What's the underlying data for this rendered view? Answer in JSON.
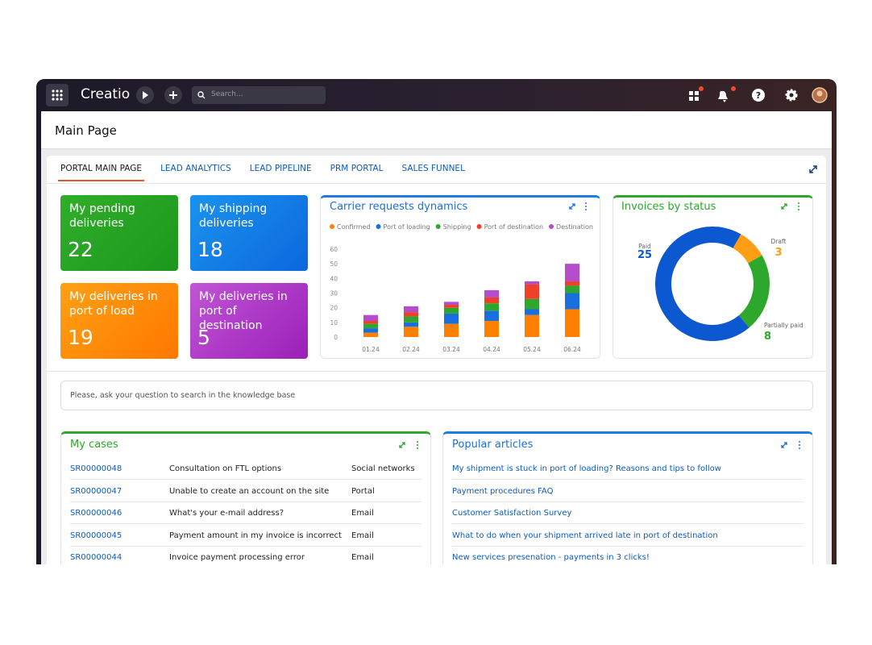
{
  "topbar": {
    "brand": "Creatio",
    "search_placeholder": "Search..."
  },
  "page": {
    "title": "Main Page"
  },
  "tabs": [
    "PORTAL MAIN PAGE",
    "LEAD ANALYTICS",
    "LEAD PIPELINE",
    "PRM PORTAL",
    "SALES FUNNEL"
  ],
  "tiles": [
    {
      "label": "My pending deliveries",
      "value": "22"
    },
    {
      "label": "My shipping deliveries",
      "value": "18"
    },
    {
      "label": "My deliveries in port of load",
      "value": "19"
    },
    {
      "label": "My deliveries in port of destination",
      "value": "5"
    }
  ],
  "knowledge_search": {
    "placeholder": "Please, ask your question to search in the knowledge base"
  },
  "cases": {
    "title": "My cases",
    "rows": [
      [
        "SR00000048",
        "Consultation on FTL options",
        "Social networks"
      ],
      [
        "SR00000047",
        "Unable to create an account on the site",
        "Portal"
      ],
      [
        "SR00000046",
        "What's your e-mail address?",
        "Email"
      ],
      [
        "SR00000045",
        "Payment amount in my invoice is incorrect",
        "Email"
      ],
      [
        "SR00000044",
        "Invoice payment processing error",
        "Email"
      ]
    ]
  },
  "articles": {
    "title": "Popular articles",
    "items": [
      "My shipment is stuck in port of loading? Reasons and tips to follow",
      "Payment procedures FAQ",
      "Customer Satisfaction Survey",
      "What to do when your shipment arrived late in port of destination",
      "New services presenation - payments in 3 clicks!"
    ]
  },
  "chart_data": [
    {
      "type": "bar",
      "stacked": true,
      "title": "Carrier requests dynamics",
      "categories": [
        "01.24",
        "02.24",
        "03.24",
        "04.24",
        "05.24",
        "06.24"
      ],
      "series": [
        {
          "name": "Confirmed",
          "color": "#ff8000",
          "values": [
            3,
            7,
            9,
            11,
            15,
            19
          ]
        },
        {
          "name": "Port of loading",
          "color": "#1a6fe0",
          "values": [
            3,
            3,
            7,
            7,
            4,
            11
          ]
        },
        {
          "name": "Shipping",
          "color": "#2ea82c",
          "values": [
            3,
            4,
            4,
            5,
            7,
            5
          ]
        },
        {
          "name": "Port of destination",
          "color": "#f0402a",
          "values": [
            2,
            3,
            2,
            4,
            10,
            3
          ]
        },
        {
          "name": "Destination",
          "color": "#b44ccc",
          "values": [
            4,
            4,
            2,
            5,
            2,
            12
          ]
        }
      ],
      "ylim": [
        0,
        60
      ],
      "yticks": [
        0,
        10,
        20,
        30,
        40,
        50,
        60
      ],
      "grid": false
    },
    {
      "type": "pie",
      "donut": true,
      "title": "Invoices by status",
      "categories": [
        "Paid",
        "Draft",
        "Partially paid"
      ],
      "values": [
        25,
        3,
        8
      ],
      "colors": [
        "#0b58d0",
        "#ff9d14",
        "#2ea82c"
      ]
    }
  ]
}
